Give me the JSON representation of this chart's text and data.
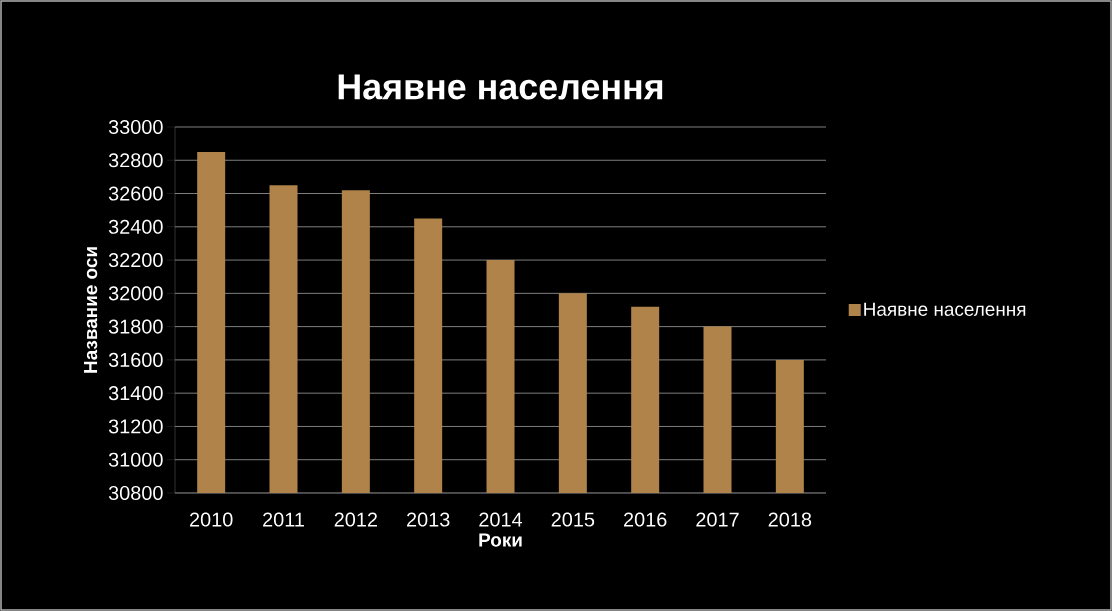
{
  "chart_data": {
    "type": "bar",
    "title": "Наявне населення",
    "xlabel": "Роки",
    "ylabel": "Название оси",
    "categories": [
      "2010",
      "2011",
      "2012",
      "2013",
      "2014",
      "2015",
      "2016",
      "2017",
      "2018"
    ],
    "series": [
      {
        "name": "Наявне населення",
        "color": "#b0834a",
        "values": [
          32850,
          32650,
          32620,
          32450,
          32200,
          32000,
          31920,
          31800,
          31600
        ]
      }
    ],
    "ylim": [
      30800,
      33000
    ],
    "yticks": [
      30800,
      31000,
      31200,
      31400,
      31600,
      31800,
      32000,
      32200,
      32400,
      32600,
      32800,
      33000
    ],
    "grid": "y",
    "legend": "right"
  }
}
